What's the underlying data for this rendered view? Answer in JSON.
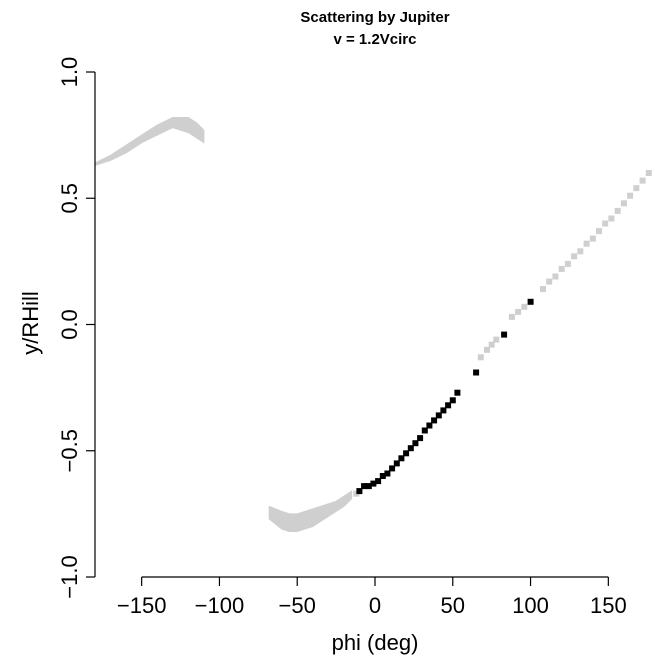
{
  "chart_data": {
    "type": "scatter",
    "title": "Scattering by Jupiter",
    "subtitle": "v = 1.2Vcirc",
    "xlabel": "phi (deg)",
    "ylabel": "y/RHill",
    "xlim": [
      -180,
      180
    ],
    "ylim": [
      -1.0,
      1.0
    ],
    "x_ticks": [
      -150,
      -100,
      -50,
      0,
      50,
      100,
      150
    ],
    "x_tick_labels": [
      "−150",
      "−100",
      "−50",
      "0",
      "50",
      "100",
      "150"
    ],
    "y_ticks": [
      -1.0,
      -0.5,
      0.0,
      0.5,
      1.0
    ],
    "y_tick_labels": [
      "−1.0",
      "−0.5",
      "0.0",
      "0.5",
      "1.0"
    ],
    "grid": false,
    "colors": {
      "light_points": "#cfcfcf",
      "dark_points": "#000000"
    },
    "series": [
      {
        "color": "#cfcfcf",
        "shape": "band",
        "bands": [
          {
            "x": [
              -180,
              -170,
              -160,
              -150,
              -140,
              -130,
              -120,
              -115,
              -110
            ],
            "y_low": [
              0.63,
              0.65,
              0.68,
              0.72,
              0.75,
              0.78,
              0.76,
              0.74,
              0.72
            ],
            "y_high": [
              0.64,
              0.67,
              0.71,
              0.75,
              0.79,
              0.82,
              0.82,
              0.8,
              0.77
            ]
          },
          {
            "x": [
              -68,
              -64,
              -60,
              -55,
              -50,
              -45,
              -40,
              -35,
              -30,
              -25,
              -20,
              -15
            ],
            "y_low": [
              -0.77,
              -0.79,
              -0.81,
              -0.82,
              -0.82,
              -0.81,
              -0.8,
              -0.78,
              -0.76,
              -0.74,
              -0.72,
              -0.69
            ],
            "y_high": [
              -0.72,
              -0.73,
              -0.74,
              -0.75,
              -0.75,
              -0.74,
              -0.73,
              -0.72,
              -0.71,
              -0.7,
              -0.68,
              -0.66
            ]
          }
        ]
      },
      {
        "color": "#cfcfcf",
        "shape": "points",
        "x": [
          -12,
          -10,
          68,
          72,
          75,
          78,
          88,
          92,
          96,
          108,
          112,
          116,
          120,
          124,
          128,
          132,
          136,
          140,
          144,
          148,
          152,
          156,
          160,
          164,
          168,
          172,
          176
        ],
        "y": [
          -0.67,
          -0.66,
          -0.13,
          -0.1,
          -0.08,
          -0.06,
          0.03,
          0.05,
          0.07,
          0.14,
          0.17,
          0.19,
          0.22,
          0.24,
          0.27,
          0.29,
          0.32,
          0.34,
          0.37,
          0.4,
          0.42,
          0.45,
          0.48,
          0.51,
          0.54,
          0.57,
          0.6
        ]
      },
      {
        "color": "#000000",
        "shape": "points",
        "x": [
          -10,
          -7,
          -4,
          -1,
          2,
          5,
          8,
          11,
          14,
          17,
          20,
          23,
          26,
          29,
          32,
          35,
          38,
          41,
          44,
          47,
          50,
          53,
          65,
          83,
          100
        ],
        "y": [
          -0.66,
          -0.64,
          -0.64,
          -0.63,
          -0.62,
          -0.6,
          -0.59,
          -0.57,
          -0.55,
          -0.53,
          -0.51,
          -0.49,
          -0.47,
          -0.45,
          -0.42,
          -0.4,
          -0.38,
          -0.36,
          -0.34,
          -0.32,
          -0.3,
          -0.27,
          -0.19,
          -0.04,
          0.09
        ]
      }
    ]
  }
}
